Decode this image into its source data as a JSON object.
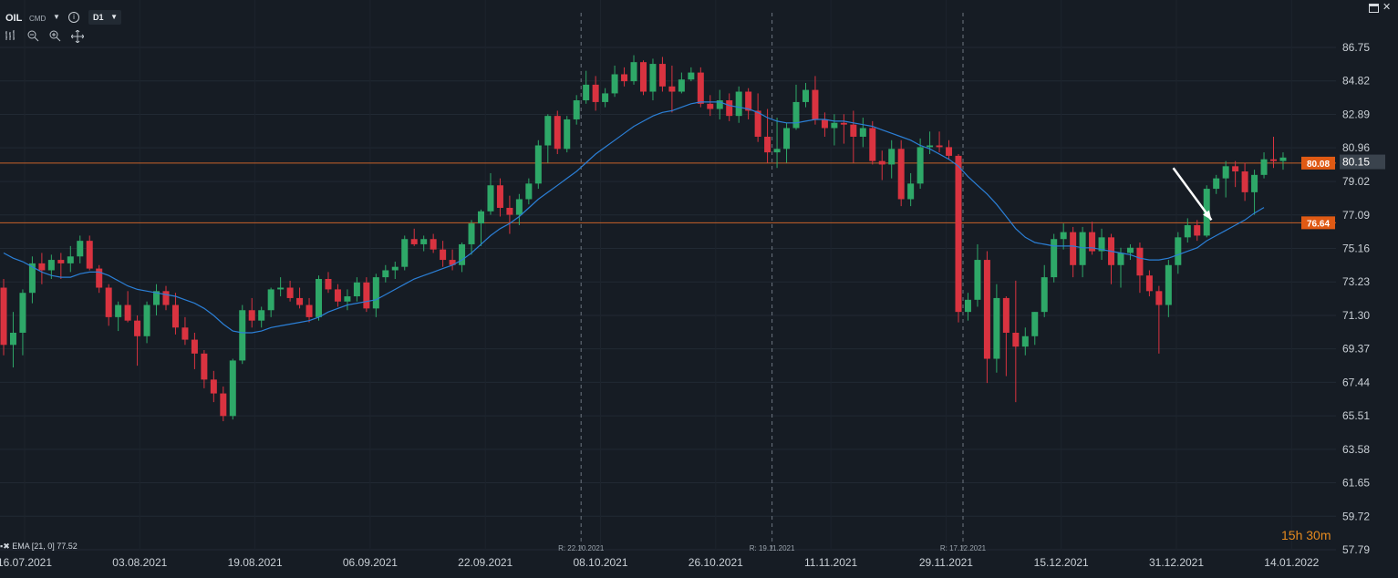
{
  "header": {
    "symbol": "OIL",
    "instrument_type": "CMD",
    "info_icon": "info-icon",
    "timeframe": "D1",
    "tools": [
      "bar-chart-icon",
      "zoom-out-icon",
      "zoom-in-icon",
      "crosshair-icon"
    ]
  },
  "window": {
    "restore_icon": "restore-icon",
    "close_icon": "close-icon"
  },
  "indicator_label": "EMA [21, 0] 77.52",
  "countdown": "15h 30m",
  "colors": {
    "background": "#161c24",
    "bull": "#2ea868",
    "bear": "#d93340",
    "ema": "#2b7fd6",
    "level_line": "#c8622a",
    "level_badge": "#e05a14",
    "trend_arrow": "#ffffff",
    "countdown": "#e58a1f"
  },
  "chart_data": {
    "type": "candlestick",
    "y_ticks": [
      "86.75",
      "84.82",
      "82.89",
      "80.96",
      "79.02",
      "77.09",
      "75.16",
      "73.23",
      "71.30",
      "69.37",
      "67.44",
      "65.51",
      "63.58",
      "61.65",
      "59.72",
      "57.79"
    ],
    "ylim": [
      57.79,
      86.75
    ],
    "x_ticks": [
      "16.07.2021",
      "03.08.2021",
      "19.08.2021",
      "06.09.2021",
      "22.09.2021",
      "08.10.2021",
      "26.10.2021",
      "11.11.2021",
      "29.11.2021",
      "15.12.2021",
      "31.12.2021",
      "14.01.2022"
    ],
    "current_price": "80.15",
    "horizontal_levels": [
      {
        "value": 80.08,
        "label": "80.08"
      },
      {
        "value": 76.64,
        "label": "76.64"
      }
    ],
    "rollover_markers": [
      {
        "label": "R: 22.10.2021",
        "index": 60
      },
      {
        "label": "R: 19.11.2021",
        "index": 80
      },
      {
        "label": "R: 17.12.2021",
        "index": 100
      }
    ],
    "ema": {
      "name": "EMA [21, 0]",
      "last": 77.52
    },
    "trend_arrow": {
      "from_index": 122.5,
      "from_value": 79.8,
      "to_index": 126.5,
      "to_value": 76.8
    },
    "ohlc": [
      [
        72.9,
        73.4,
        69.0,
        69.6
      ],
      [
        69.6,
        71.5,
        68.3,
        70.3
      ],
      [
        70.3,
        72.8,
        69.0,
        72.6
      ],
      [
        72.6,
        74.7,
        72.0,
        74.3
      ],
      [
        74.3,
        74.9,
        73.1,
        73.9
      ],
      [
        73.9,
        74.8,
        73.4,
        74.5
      ],
      [
        74.5,
        74.9,
        73.4,
        74.3
      ],
      [
        74.3,
        75.3,
        73.8,
        74.7
      ],
      [
        74.7,
        75.9,
        74.3,
        75.6
      ],
      [
        75.6,
        75.9,
        73.9,
        74.0
      ],
      [
        74.0,
        74.2,
        72.6,
        72.9
      ],
      [
        72.9,
        73.1,
        70.7,
        71.2
      ],
      [
        71.2,
        72.1,
        70.4,
        71.9
      ],
      [
        71.9,
        72.7,
        70.9,
        71.0
      ],
      [
        71.0,
        71.3,
        68.4,
        70.1
      ],
      [
        70.1,
        72.1,
        69.7,
        71.9
      ],
      [
        71.9,
        73.1,
        71.3,
        72.7
      ],
      [
        72.7,
        73.0,
        71.6,
        71.9
      ],
      [
        71.9,
        72.6,
        70.2,
        70.6
      ],
      [
        70.6,
        71.2,
        69.6,
        69.9
      ],
      [
        69.9,
        70.3,
        68.2,
        69.1
      ],
      [
        69.1,
        69.3,
        67.1,
        67.6
      ],
      [
        67.6,
        68.1,
        66.3,
        66.8
      ],
      [
        66.8,
        67.2,
        65.2,
        65.5
      ],
      [
        65.5,
        68.8,
        65.3,
        68.7
      ],
      [
        68.7,
        71.9,
        68.5,
        71.6
      ],
      [
        71.6,
        72.3,
        70.6,
        71.0
      ],
      [
        71.0,
        71.8,
        70.6,
        71.6
      ],
      [
        71.6,
        72.9,
        71.2,
        72.8
      ],
      [
        72.8,
        73.5,
        72.4,
        72.9
      ],
      [
        72.9,
        73.3,
        72.1,
        72.3
      ],
      [
        72.3,
        72.9,
        71.7,
        71.9
      ],
      [
        71.9,
        72.3,
        70.9,
        71.2
      ],
      [
        71.2,
        73.6,
        71.0,
        73.4
      ],
      [
        73.4,
        73.8,
        72.6,
        72.8
      ],
      [
        72.8,
        73.1,
        71.8,
        72.1
      ],
      [
        72.1,
        72.8,
        71.6,
        72.4
      ],
      [
        72.4,
        73.5,
        72.1,
        73.2
      ],
      [
        73.2,
        73.5,
        71.5,
        71.7
      ],
      [
        71.7,
        73.7,
        71.2,
        73.5
      ],
      [
        73.5,
        74.2,
        73.2,
        73.9
      ],
      [
        73.9,
        74.4,
        73.4,
        74.1
      ],
      [
        74.1,
        75.9,
        73.9,
        75.7
      ],
      [
        75.7,
        76.3,
        75.3,
        75.4
      ],
      [
        75.4,
        75.9,
        75.0,
        75.7
      ],
      [
        75.7,
        76.0,
        74.9,
        75.1
      ],
      [
        75.1,
        75.6,
        74.1,
        74.5
      ],
      [
        74.5,
        75.1,
        73.9,
        74.2
      ],
      [
        74.2,
        75.5,
        73.8,
        75.4
      ],
      [
        75.4,
        76.8,
        74.8,
        76.6
      ],
      [
        76.6,
        77.4,
        75.3,
        77.3
      ],
      [
        77.3,
        79.5,
        77.1,
        78.8
      ],
      [
        78.8,
        79.2,
        77.0,
        77.5
      ],
      [
        77.5,
        78.2,
        76.0,
        77.1
      ],
      [
        77.1,
        78.3,
        76.5,
        78.0
      ],
      [
        78.0,
        79.2,
        77.7,
        78.9
      ],
      [
        78.9,
        81.4,
        78.6,
        81.1
      ],
      [
        81.1,
        82.9,
        80.1,
        82.8
      ],
      [
        82.8,
        83.1,
        80.6,
        80.9
      ],
      [
        80.9,
        82.8,
        80.7,
        82.6
      ],
      [
        82.6,
        84.0,
        82.3,
        83.7
      ],
      [
        83.7,
        85.4,
        83.5,
        84.6
      ],
      [
        84.6,
        85.1,
        83.1,
        83.6
      ],
      [
        83.6,
        84.4,
        83.3,
        84.1
      ],
      [
        84.1,
        85.7,
        83.9,
        85.2
      ],
      [
        85.2,
        85.6,
        84.5,
        84.8
      ],
      [
        84.8,
        86.3,
        84.6,
        85.9
      ],
      [
        85.9,
        86.0,
        84.0,
        84.2
      ],
      [
        84.2,
        86.1,
        83.7,
        85.8
      ],
      [
        85.8,
        86.2,
        84.2,
        84.5
      ],
      [
        84.5,
        85.7,
        83.0,
        84.2
      ],
      [
        84.2,
        85.3,
        84.1,
        84.9
      ],
      [
        84.9,
        85.6,
        84.8,
        85.3
      ],
      [
        85.3,
        85.6,
        83.3,
        83.5
      ],
      [
        83.5,
        84.0,
        82.8,
        83.2
      ],
      [
        83.2,
        84.3,
        82.6,
        83.7
      ],
      [
        83.7,
        84.1,
        82.5,
        82.8
      ],
      [
        82.8,
        84.5,
        82.4,
        84.2
      ],
      [
        84.2,
        84.4,
        82.6,
        83.1
      ],
      [
        83.1,
        84.1,
        81.3,
        81.6
      ],
      [
        81.6,
        83.2,
        80.1,
        80.7
      ],
      [
        80.7,
        82.7,
        79.8,
        80.9
      ],
      [
        80.9,
        82.4,
        80.1,
        82.1
      ],
      [
        82.1,
        84.6,
        82.0,
        83.6
      ],
      [
        83.6,
        84.7,
        83.3,
        84.3
      ],
      [
        84.3,
        85.1,
        82.3,
        82.6
      ],
      [
        82.6,
        83.0,
        81.6,
        82.1
      ],
      [
        82.1,
        82.9,
        81.1,
        82.4
      ],
      [
        82.4,
        82.9,
        81.2,
        82.3
      ],
      [
        82.3,
        83.1,
        80.1,
        81.6
      ],
      [
        81.6,
        82.7,
        81.0,
        82.1
      ],
      [
        82.1,
        82.5,
        80.0,
        80.2
      ],
      [
        80.2,
        80.8,
        79.1,
        80.0
      ],
      [
        80.0,
        81.4,
        79.2,
        80.9
      ],
      [
        80.9,
        81.4,
        77.6,
        78.0
      ],
      [
        78.0,
        79.5,
        77.6,
        78.9
      ],
      [
        78.9,
        81.5,
        78.6,
        81.0
      ],
      [
        81.0,
        81.9,
        80.6,
        81.1
      ],
      [
        81.1,
        81.9,
        80.7,
        81.0
      ],
      [
        81.0,
        81.4,
        80.3,
        80.5
      ],
      [
        80.5,
        80.6,
        70.9,
        71.5
      ],
      [
        71.5,
        72.6,
        71.0,
        72.2
      ],
      [
        72.2,
        75.4,
        71.8,
        74.5
      ],
      [
        74.5,
        75.0,
        67.4,
        68.8
      ],
      [
        68.8,
        73.1,
        68.0,
        72.3
      ],
      [
        72.3,
        72.4,
        67.8,
        70.3
      ],
      [
        70.3,
        73.3,
        66.3,
        69.5
      ],
      [
        69.5,
        70.6,
        69.0,
        70.1
      ],
      [
        70.1,
        71.5,
        69.6,
        71.5
      ],
      [
        71.5,
        74.2,
        71.2,
        73.5
      ],
      [
        73.5,
        76.0,
        73.2,
        75.7
      ],
      [
        75.7,
        76.6,
        75.1,
        76.1
      ],
      [
        76.1,
        76.4,
        73.5,
        74.2
      ],
      [
        74.2,
        76.4,
        73.5,
        76.1
      ],
      [
        76.1,
        76.7,
        74.8,
        75.0
      ],
      [
        75.0,
        76.3,
        74.5,
        75.8
      ],
      [
        75.8,
        76.0,
        73.1,
        74.2
      ],
      [
        74.2,
        75.2,
        72.9,
        74.9
      ],
      [
        74.9,
        75.4,
        74.5,
        75.2
      ],
      [
        75.2,
        75.5,
        72.6,
        73.6
      ],
      [
        73.6,
        73.9,
        72.4,
        72.7
      ],
      [
        72.7,
        73.0,
        69.1,
        71.9
      ],
      [
        71.9,
        74.5,
        71.2,
        74.2
      ],
      [
        74.2,
        76.1,
        73.7,
        75.8
      ],
      [
        75.8,
        76.9,
        75.5,
        76.5
      ],
      [
        76.5,
        76.8,
        75.6,
        75.9
      ],
      [
        75.9,
        78.8,
        75.8,
        78.6
      ],
      [
        78.6,
        79.4,
        78.3,
        79.2
      ],
      [
        79.2,
        80.2,
        78.1,
        79.9
      ],
      [
        79.9,
        80.2,
        78.7,
        79.6
      ],
      [
        79.6,
        80.1,
        77.9,
        78.4
      ],
      [
        78.4,
        79.7,
        77.1,
        79.4
      ],
      [
        79.4,
        80.7,
        79.2,
        80.3
      ],
      [
        80.3,
        81.6,
        79.8,
        80.2
      ],
      [
        80.2,
        80.7,
        79.7,
        80.4
      ]
    ],
    "ema_values": [
      74.9,
      74.6,
      74.4,
      74.1,
      73.8,
      73.6,
      73.5,
      73.5,
      73.7,
      73.8,
      73.8,
      73.6,
      73.3,
      73.0,
      72.8,
      72.7,
      72.6,
      72.5,
      72.4,
      72.2,
      72.0,
      71.7,
      71.3,
      70.8,
      70.4,
      70.3,
      70.3,
      70.4,
      70.6,
      70.7,
      70.8,
      70.9,
      71.0,
      71.2,
      71.5,
      71.7,
      71.9,
      72.0,
      72.1,
      72.2,
      72.5,
      72.8,
      73.1,
      73.4,
      73.6,
      73.8,
      74.0,
      74.2,
      74.5,
      74.9,
      75.4,
      75.9,
      76.3,
      76.6,
      77.0,
      77.5,
      78.0,
      78.4,
      78.8,
      79.2,
      79.6,
      80.1,
      80.6,
      81.0,
      81.4,
      81.8,
      82.2,
      82.5,
      82.8,
      83.0,
      83.1,
      83.3,
      83.5,
      83.6,
      83.6,
      83.6,
      83.4,
      83.3,
      83.2,
      83.0,
      82.7,
      82.5,
      82.4,
      82.4,
      82.5,
      82.6,
      82.6,
      82.5,
      82.5,
      82.4,
      82.3,
      82.2,
      82.0,
      81.8,
      81.6,
      81.4,
      81.1,
      80.9,
      80.6,
      80.3,
      79.9,
      79.3,
      78.8,
      78.3,
      77.7,
      77.0,
      76.3,
      75.8,
      75.5,
      75.4,
      75.3,
      75.3,
      75.3,
      75.2,
      75.2,
      75.1,
      75.0,
      74.9,
      74.8,
      74.6,
      74.5,
      74.5,
      74.6,
      74.8,
      75.0,
      75.2,
      75.6,
      75.9,
      76.2,
      76.5,
      76.8,
      77.2,
      77.52
    ]
  }
}
